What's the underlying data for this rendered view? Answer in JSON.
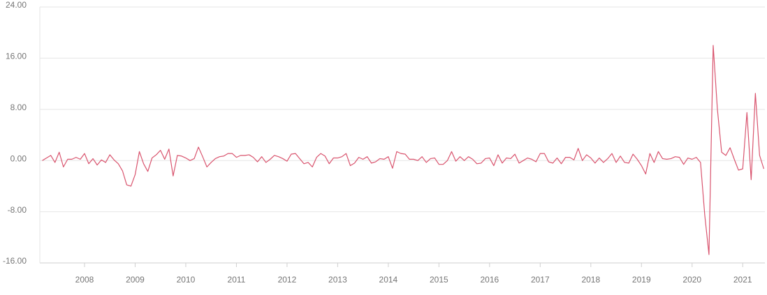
{
  "chart_data": {
    "type": "line",
    "categories": [
      null,
      null,
      null,
      null,
      null,
      null,
      null,
      null,
      null,
      null,
      "2008",
      null,
      null,
      null,
      null,
      null,
      null,
      null,
      null,
      null,
      null,
      null,
      "2009",
      null,
      null,
      null,
      null,
      null,
      null,
      null,
      null,
      null,
      null,
      null,
      "2010",
      null,
      null,
      null,
      null,
      null,
      null,
      null,
      null,
      null,
      null,
      null,
      "2011",
      null,
      null,
      null,
      null,
      null,
      null,
      null,
      null,
      null,
      null,
      null,
      "2012",
      null,
      null,
      null,
      null,
      null,
      null,
      null,
      null,
      null,
      null,
      null,
      "2013",
      null,
      null,
      null,
      null,
      null,
      null,
      null,
      null,
      null,
      null,
      null,
      "2014",
      null,
      null,
      null,
      null,
      null,
      null,
      null,
      null,
      null,
      null,
      null,
      "2015",
      null,
      null,
      null,
      null,
      null,
      null,
      null,
      null,
      null,
      null,
      null,
      "2016",
      null,
      null,
      null,
      null,
      null,
      null,
      null,
      null,
      null,
      null,
      null,
      "2017",
      null,
      null,
      null,
      null,
      null,
      null,
      null,
      null,
      null,
      null,
      null,
      "2018",
      null,
      null,
      null,
      null,
      null,
      null,
      null,
      null,
      null,
      null,
      null,
      "2019",
      null,
      null,
      null,
      null,
      null,
      null,
      null,
      null,
      null,
      null,
      null,
      "2020",
      null,
      null,
      null,
      null,
      null,
      null,
      null,
      null,
      null,
      null,
      null,
      "2021",
      null,
      null,
      null,
      null,
      null
    ],
    "values": [
      0.0,
      0.4,
      0.8,
      -0.3,
      1.3,
      -1.0,
      0.2,
      0.2,
      0.5,
      0.2,
      1.1,
      -0.5,
      0.3,
      -0.7,
      0.1,
      -0.3,
      0.9,
      0.1,
      -0.5,
      -1.6,
      -3.8,
      -4.0,
      -2.2,
      1.4,
      -0.5,
      -1.7,
      0.4,
      0.9,
      1.6,
      0.2,
      1.8,
      -2.4,
      0.8,
      0.7,
      0.4,
      0.0,
      0.3,
      2.1,
      0.6,
      -1.0,
      -0.3,
      0.3,
      0.6,
      0.7,
      1.1,
      1.1,
      0.5,
      0.8,
      0.8,
      0.9,
      0.5,
      -0.2,
      0.6,
      -0.3,
      0.2,
      0.8,
      0.6,
      0.3,
      -0.1,
      1.0,
      1.1,
      0.3,
      -0.5,
      -0.3,
      -1.0,
      0.5,
      1.1,
      0.7,
      -0.5,
      0.4,
      0.4,
      0.6,
      1.1,
      -0.8,
      -0.4,
      0.5,
      0.2,
      0.6,
      -0.4,
      -0.2,
      0.3,
      0.2,
      0.6,
      -1.2,
      1.4,
      1.1,
      1.0,
      0.2,
      0.2,
      0.0,
      0.6,
      -0.3,
      0.3,
      0.4,
      -0.6,
      -0.6,
      0.0,
      1.4,
      -0.1,
      0.6,
      0.0,
      0.6,
      0.2,
      -0.5,
      -0.4,
      0.3,
      0.4,
      -0.8,
      0.9,
      -0.4,
      0.4,
      0.3,
      1.0,
      -0.4,
      0.0,
      0.4,
      0.2,
      -0.2,
      1.1,
      1.1,
      -0.2,
      -0.4,
      0.4,
      -0.5,
      0.5,
      0.5,
      0.1,
      1.9,
      0.0,
      0.9,
      0.4,
      -0.4,
      0.4,
      -0.3,
      0.3,
      1.1,
      -0.3,
      0.7,
      -0.3,
      -0.4,
      1.0,
      0.2,
      -0.8,
      -2.1,
      1.1,
      -0.3,
      1.4,
      0.3,
      0.2,
      0.3,
      0.6,
      0.5,
      -0.6,
      0.4,
      0.2,
      0.5,
      -0.3,
      -8.5,
      -14.7,
      18.0,
      8.0,
      1.3,
      0.8,
      2.0,
      0.2,
      -1.5,
      -1.3,
      7.5,
      -3.0,
      10.5,
      0.8,
      -1.3
    ],
    "color": "#d9546e",
    "ylim": [
      -16,
      24
    ],
    "yticks": [
      {
        "value": -16,
        "label": "-16.00"
      },
      {
        "value": -8,
        "label": "-8.00"
      },
      {
        "value": 0,
        "label": "0.00"
      },
      {
        "value": 8,
        "label": "8.00"
      },
      {
        "value": 16,
        "label": "16.00"
      },
      {
        "value": 24,
        "label": "24.00"
      }
    ],
    "grid": true
  }
}
